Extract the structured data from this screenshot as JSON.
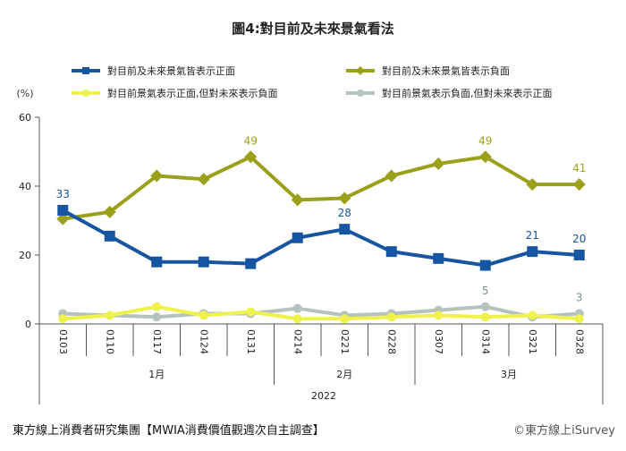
{
  "chart_data": {
    "type": "line",
    "title": "圖4:對目前及未來景氣看法",
    "yunit": "(%)",
    "ylim": [
      0,
      60
    ],
    "yticks": [
      0,
      20,
      40,
      60
    ],
    "categories": [
      "0103",
      "0110",
      "0117",
      "0124",
      "0131",
      "0214",
      "0221",
      "0228",
      "0307",
      "0314",
      "0321",
      "0328"
    ],
    "months": [
      {
        "label": "1月",
        "span": [
          0,
          4
        ]
      },
      {
        "label": "2月",
        "span": [
          5,
          7
        ]
      },
      {
        "label": "3月",
        "span": [
          8,
          11
        ]
      }
    ],
    "year": "2022",
    "series": [
      {
        "name": "對目前及未來景氣皆表示正面",
        "color": "#1655A2",
        "marker": "square",
        "values": [
          33,
          25.5,
          18,
          18,
          17.5,
          25,
          27.5,
          21,
          19,
          17,
          21,
          20
        ],
        "labels": [
          {
            "i": 0,
            "text": "33"
          },
          {
            "i": 6,
            "text": "28"
          },
          {
            "i": 10,
            "text": "21"
          },
          {
            "i": 11,
            "text": "20"
          }
        ]
      },
      {
        "name": "對目前及未來景氣皆表示負面",
        "color": "#9AA01A",
        "marker": "diamond",
        "values": [
          30.5,
          32.5,
          43,
          42,
          48.5,
          36,
          36.5,
          43,
          46.5,
          48.5,
          40.5,
          40.5
        ],
        "labels": [
          {
            "i": 4,
            "text": "49"
          },
          {
            "i": 9,
            "text": "49"
          },
          {
            "i": 11,
            "text": "41"
          }
        ]
      },
      {
        "name": "對目前景氣表示正面,但對未來表示負面",
        "color": "#EEF24A",
        "marker": "circle",
        "values": [
          1.5,
          2.5,
          5,
          2.5,
          3.5,
          1.5,
          1.5,
          2,
          2.5,
          2,
          2.5,
          1.5
        ],
        "labels": []
      },
      {
        "name": "對目前景氣表示負面,但對未來表示正面",
        "color": "#B5C2BE",
        "marker": "circle",
        "values": [
          3,
          2.5,
          2,
          3,
          3,
          4.5,
          2.5,
          3,
          4,
          5,
          2,
          3
        ],
        "labels": [
          {
            "i": 9,
            "text": "5"
          },
          {
            "i": 11,
            "text": "3"
          }
        ]
      }
    ]
  },
  "footer": {
    "source": "東方線上消費者研究集團【MWIA消費價值觀週次自主調查】",
    "copyright": "©東方線上iSurvey"
  }
}
